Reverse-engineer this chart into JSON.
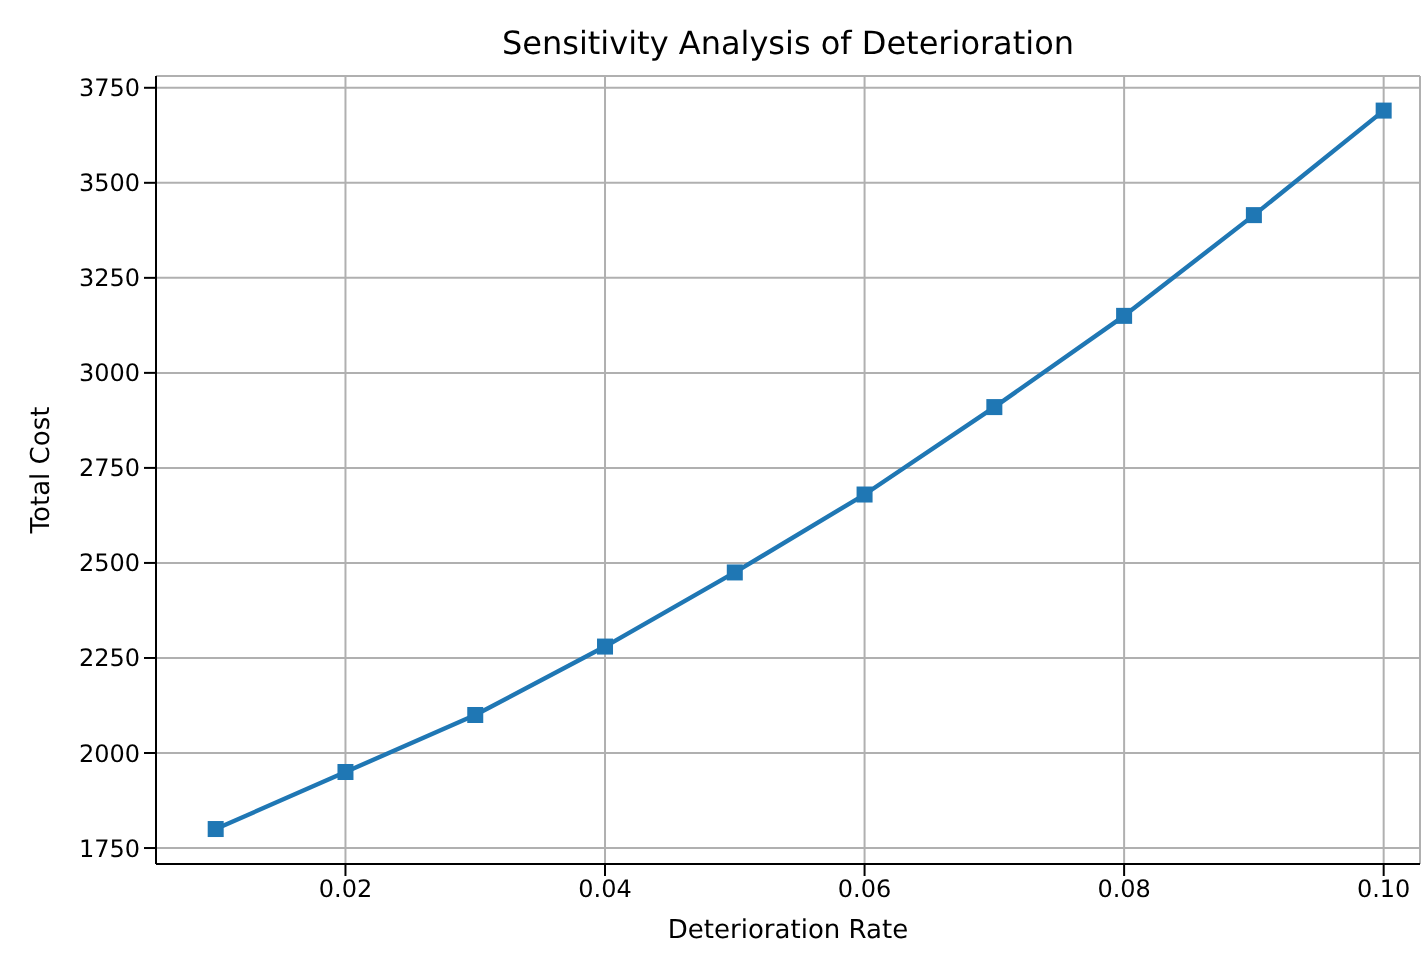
{
  "chart_data": {
    "type": "line",
    "title": "Sensitivity Analysis of Deterioration",
    "xlabel": "Deterioration Rate",
    "ylabel": "Total Cost",
    "x": [
      0.01,
      0.02,
      0.03,
      0.04,
      0.05,
      0.06,
      0.07,
      0.08,
      0.09,
      0.1
    ],
    "series": [
      {
        "color": "#1f77b4",
        "values": [
          1800,
          1950,
          2100,
          2280,
          2475,
          2680,
          2910,
          3150,
          3415,
          3690
        ]
      }
    ],
    "xlim": [
      0.0054,
      0.1028
    ],
    "xticks": [
      {
        "value": 0.02,
        "label": "0.02"
      },
      {
        "value": 0.04,
        "label": "0.04"
      },
      {
        "value": 0.06,
        "label": "0.06"
      },
      {
        "value": 0.08,
        "label": "0.08"
      },
      {
        "value": 0.1,
        "label": "0.10"
      }
    ],
    "ylim": [
      1708,
      3781
    ],
    "yticks": [
      1750,
      2000,
      2250,
      2500,
      2750,
      3000,
      3250,
      3500,
      3750
    ],
    "grid": true,
    "marker": "square",
    "line_style": "solid"
  }
}
